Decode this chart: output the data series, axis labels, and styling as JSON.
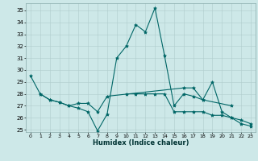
{
  "title": "",
  "xlabel": "Humidex (Indice chaleur)",
  "ylabel": "",
  "bg_color": "#cde8e8",
  "line_color": "#006666",
  "grid_color": "#b0cccc",
  "xlim": [
    -0.5,
    23.5
  ],
  "ylim": [
    24.8,
    35.6
  ],
  "yticks": [
    25,
    26,
    27,
    28,
    29,
    30,
    31,
    32,
    33,
    34,
    35
  ],
  "xticks": [
    0,
    1,
    2,
    3,
    4,
    5,
    6,
    7,
    8,
    9,
    10,
    11,
    12,
    13,
    14,
    15,
    16,
    17,
    18,
    19,
    20,
    21,
    22,
    23
  ],
  "series": [
    [
      29.5,
      28.0,
      27.5,
      27.3,
      27.0,
      26.8,
      26.5,
      24.9,
      26.3,
      31.0,
      32.0,
      33.8,
      33.2,
      35.2,
      31.2,
      27.0,
      28.0,
      27.8,
      27.5,
      29.0,
      26.5,
      26.0,
      25.5,
      25.3
    ],
    [
      null,
      28.0,
      27.5,
      27.3,
      27.0,
      27.2,
      27.2,
      26.5,
      27.8,
      null,
      null,
      null,
      null,
      null,
      null,
      null,
      28.5,
      28.5,
      27.5,
      null,
      null,
      27.0,
      null,
      null
    ],
    [
      null,
      null,
      null,
      null,
      null,
      null,
      null,
      null,
      null,
      null,
      28.0,
      28.0,
      28.0,
      28.0,
      28.0,
      26.5,
      26.5,
      26.5,
      26.5,
      26.2,
      26.2,
      26.0,
      25.8,
      25.5
    ]
  ]
}
